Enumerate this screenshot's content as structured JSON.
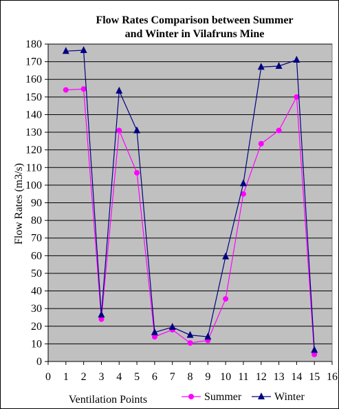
{
  "chart_data": {
    "type": "line",
    "title_lines": [
      "Flow Rates Comparison between Summer",
      "and Winter in Vilafruns Mine"
    ],
    "xlabel": "Ventilation Points",
    "ylabel": "Flow Rates (m3/s)",
    "xlim": [
      0,
      16
    ],
    "ylim": [
      0,
      180
    ],
    "x_ticks": [
      0,
      1,
      2,
      3,
      4,
      5,
      6,
      7,
      8,
      9,
      10,
      11,
      12,
      13,
      14,
      15,
      16
    ],
    "y_ticks": [
      0,
      10,
      20,
      30,
      40,
      50,
      60,
      70,
      80,
      90,
      100,
      110,
      120,
      130,
      140,
      150,
      160,
      170,
      180
    ],
    "grid": "horizontal",
    "plot_background": "#c0c0c0",
    "legend_position": "bottom-right",
    "x": [
      1,
      2,
      3,
      4,
      5,
      6,
      7,
      8,
      9,
      10,
      11,
      12,
      13,
      14,
      15
    ],
    "series": [
      {
        "name": "Summer",
        "color": "#ff00ff",
        "marker": "circle",
        "values": [
          154,
          154.5,
          24,
          131,
          107,
          14,
          18,
          10.5,
          12,
          35.5,
          95,
          123.5,
          131,
          150,
          4
        ]
      },
      {
        "name": "Winter",
        "color": "#000080",
        "marker": "triangle",
        "values": [
          176,
          176.5,
          26.5,
          153.5,
          131,
          16.5,
          19.5,
          15,
          14,
          59.5,
          101,
          167,
          167.5,
          171,
          6.5
        ]
      }
    ]
  }
}
